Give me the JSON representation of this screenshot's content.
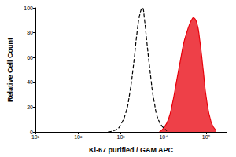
{
  "chart_data": {
    "type": "line",
    "x_label": "Ki-67 purified / GAM APC",
    "y_label": "Relative Cell Count",
    "log": "x",
    "grid": false,
    "xlim": [
      10,
      300000
    ],
    "xticks": [
      {
        "value": 10,
        "label": "10¹"
      },
      {
        "value": 100,
        "label": "10²"
      },
      {
        "value": 1000,
        "label": "10³"
      },
      {
        "value": 10000,
        "label": "10⁴"
      },
      {
        "value": 100000,
        "label": "10⁵"
      }
    ],
    "ylim": [
      0,
      100
    ],
    "yticks": [
      0,
      20,
      40,
      60,
      80,
      100
    ],
    "series": [
      {
        "color": "#000000",
        "line_style": "dashed",
        "x": [
          500,
          800,
          1000,
          1300,
          1600,
          2000,
          2400,
          2800,
          3200,
          3600,
          4000,
          5000,
          6000,
          8000,
          12000
        ],
        "values": [
          0,
          2,
          6,
          15,
          30,
          55,
          80,
          95,
          100,
          90,
          75,
          45,
          25,
          8,
          1
        ]
      },
      {
        "color": "#e8000b",
        "type": "area",
        "line_style": "solid",
        "x": [
          8000,
          10000,
          13000,
          16000,
          20000,
          25000,
          30000,
          35000,
          40000,
          45000,
          50000,
          60000,
          70000,
          85000,
          100000,
          130000,
          170000
        ],
        "values": [
          0,
          3,
          10,
          22,
          40,
          58,
          72,
          80,
          86,
          90,
          92,
          88,
          75,
          50,
          28,
          8,
          1
        ]
      }
    ]
  }
}
